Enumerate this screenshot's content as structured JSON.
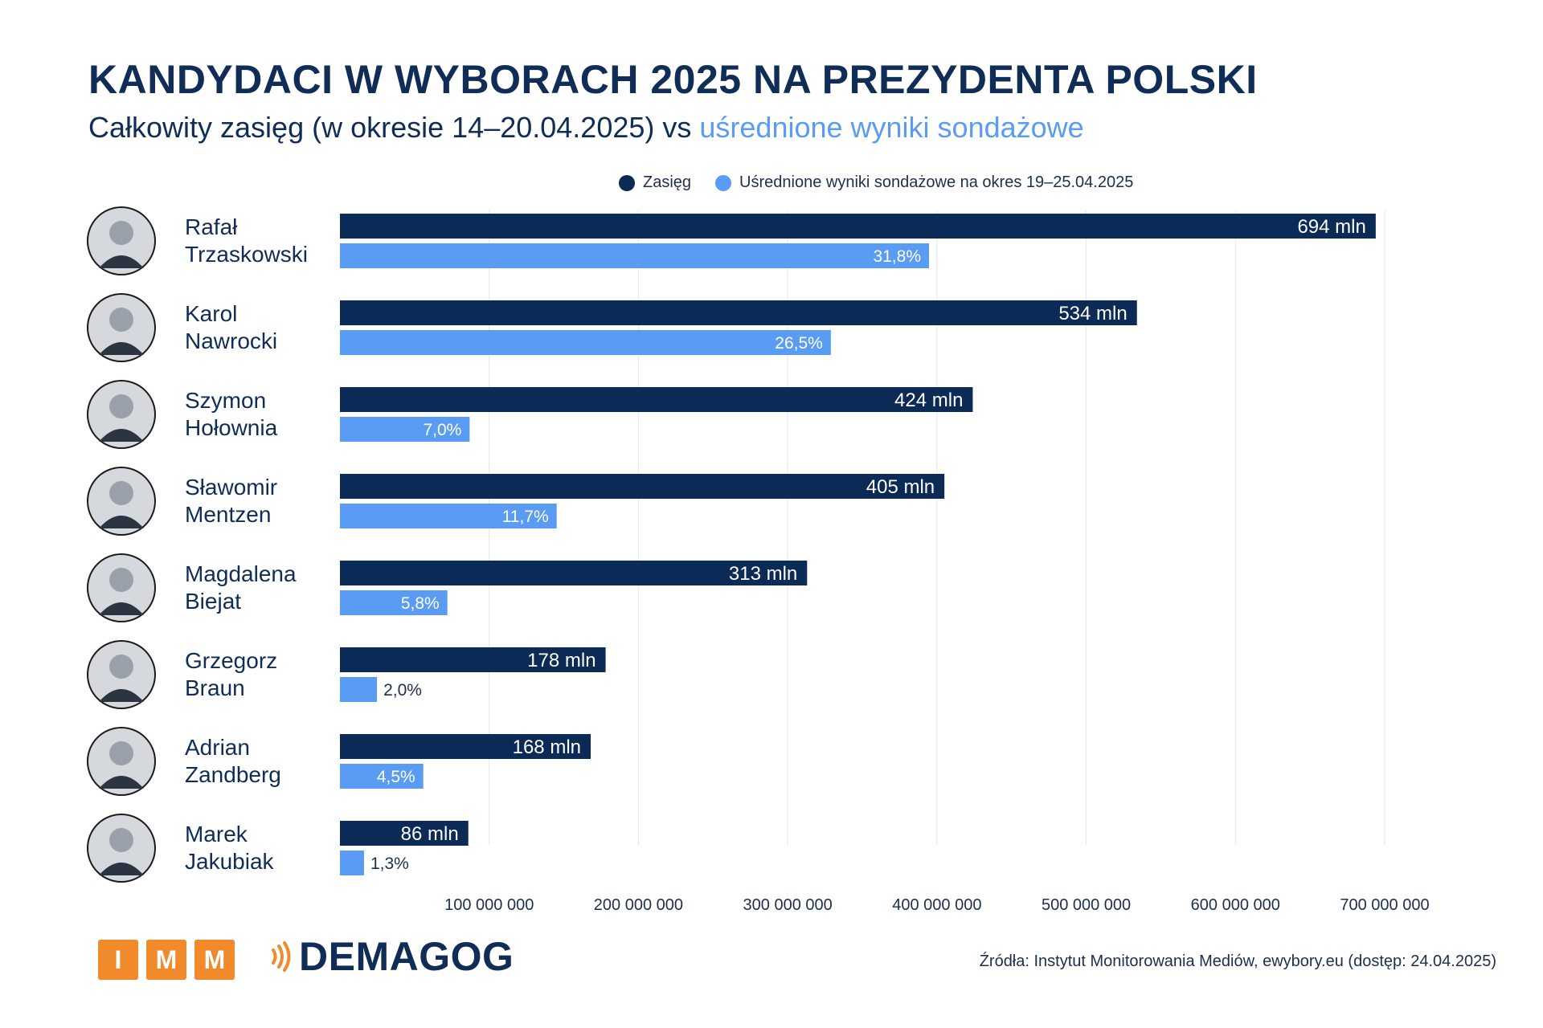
{
  "header": {
    "title": "KANDYDACI W WYBORACH 2025 NA PREZYDENTA POLSKI",
    "subtitle_main": "Całkowity zasięg (w okresie 14–20.04.2025) vs ",
    "subtitle_accent": "uśrednione wyniki sondażowe"
  },
  "legend": {
    "reach": "Zasięg",
    "polls": "Uśrednione wyniki sondażowe na okres 19–25.04.2025"
  },
  "colors": {
    "reach": "#0b2a55",
    "polls": "#5a9cf3",
    "imm_orange": "#f18a2a",
    "grid": "#e3e6ea"
  },
  "chart_data": {
    "type": "bar",
    "orientation": "horizontal",
    "categories": [
      "Rafał Trzaskowski",
      "Karol Nawrocki",
      "Szymon Hołownia",
      "Sławomir Mentzen",
      "Magdalena Biejat",
      "Grzegorz Braun",
      "Adrian Zandberg",
      "Marek Jakubiak"
    ],
    "name_lines": [
      [
        "Rafał",
        "Trzaskowski"
      ],
      [
        "Karol",
        "Nawrocki"
      ],
      [
        "Szymon",
        "Hołownia"
      ],
      [
        "Sławomir",
        "Mentzen"
      ],
      [
        "Magdalena",
        "Biejat"
      ],
      [
        "Grzegorz",
        "Braun"
      ],
      [
        "Adrian",
        "Zandberg"
      ],
      [
        "Marek",
        "Jakubiak"
      ]
    ],
    "series": [
      {
        "name": "Zasięg",
        "values": [
          694000000,
          534000000,
          424000000,
          405000000,
          313000000,
          178000000,
          168000000,
          86000000
        ],
        "labels": [
          "694 mln",
          "534 mln",
          "424 mln",
          "405 mln",
          "313 mln",
          "178 mln",
          "168 mln",
          "86 mln"
        ]
      },
      {
        "name": "Uśrednione wyniki sondażowe na okres 19–25.04.2025",
        "values": [
          31.8,
          26.5,
          7.0,
          11.7,
          5.8,
          2.0,
          4.5,
          1.3
        ],
        "labels": [
          "31,8%",
          "26,5%",
          "7,0%",
          "11,7%",
          "5,8%",
          "2,0%",
          "4,5%",
          "1,3%"
        ]
      }
    ],
    "xlim": [
      0,
      700000000
    ],
    "x_ticks": [
      100000000,
      200000000,
      300000000,
      400000000,
      500000000,
      600000000,
      700000000
    ],
    "x_tick_labels": [
      "100 000 000",
      "200 000 000",
      "300 000 000",
      "400 000 000",
      "500 000 000",
      "600 000 000",
      "700 000 000"
    ],
    "grid": true,
    "legend_position": "top"
  },
  "footer": {
    "imm_letters": [
      "I",
      "M",
      "M"
    ],
    "demagog": "DEMAGOG",
    "source": "Źródła: Instytut Monitorowania Mediów, ewybory.eu (dostęp: 24.04.2025)"
  }
}
